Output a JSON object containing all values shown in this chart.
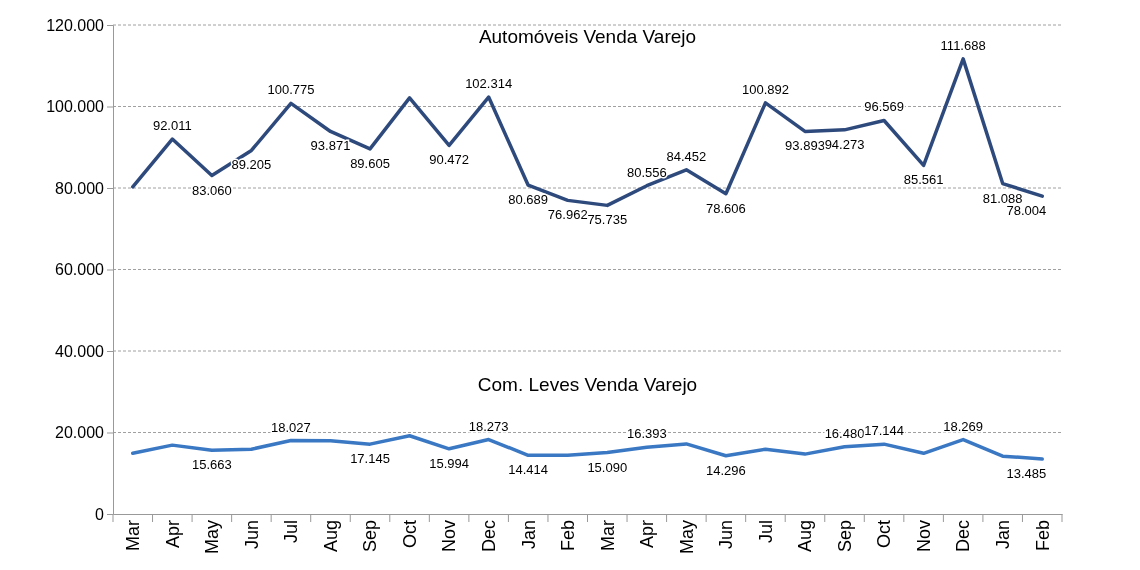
{
  "chart_data": {
    "type": "line",
    "categories": [
      "Mar",
      "Apr",
      "May",
      "Jun",
      "Jul",
      "Aug",
      "Sep",
      "Oct",
      "Nov",
      "Dec",
      "Jan",
      "Feb",
      "Mar",
      "Apr",
      "May",
      "Jun",
      "Jul",
      "Aug",
      "Sep",
      "Oct",
      "Nov",
      "Dec",
      "Jan",
      "Feb"
    ],
    "series": [
      {
        "name": "Automóveis Venda Varejo",
        "color": "#2e4a7d",
        "values": [
          80300,
          92011,
          83060,
          89205,
          100775,
          93871,
          89605,
          102100,
          90472,
          102314,
          80689,
          76962,
          75735,
          80556,
          84452,
          78606,
          100892,
          93893,
          94273,
          96569,
          85561,
          111688,
          81088,
          78004
        ],
        "value_labels": [
          null,
          "92.011",
          "83.060",
          "89.205",
          "100.775",
          "93.871",
          "89.605",
          null,
          "90.472",
          "102.314",
          "80.689",
          "76.962",
          "75.735",
          "80.556",
          "84.452",
          "78.606",
          "100.892",
          "93.893",
          "94.273",
          "96.569",
          "85.561",
          "111.688",
          "81.088",
          "78.004"
        ]
      },
      {
        "name": "Com. Leves Venda Varejo",
        "color": "#3a78c4",
        "values": [
          14900,
          16900,
          15663,
          15900,
          18027,
          18000,
          17145,
          19200,
          15994,
          18273,
          14414,
          14400,
          15090,
          16393,
          17200,
          14296,
          15900,
          14700,
          16480,
          17144,
          14900,
          18269,
          14200,
          13485
        ],
        "value_labels": [
          null,
          null,
          "15.663",
          null,
          "18.027",
          null,
          "17.145",
          null,
          "15.994",
          "18.273",
          "14.414",
          null,
          "15.090",
          "16.393",
          null,
          "14.296",
          null,
          null,
          "16.480",
          "17.144",
          null,
          "18.269",
          null,
          "13.485"
        ]
      }
    ],
    "ylim": [
      0,
      120000
    ],
    "yticks": [
      {
        "value": 0,
        "label": "0"
      },
      {
        "value": 20000,
        "label": "20.000"
      },
      {
        "value": 40000,
        "label": "40.000"
      },
      {
        "value": 60000,
        "label": "60.000"
      },
      {
        "value": 80000,
        "label": "80.000"
      },
      {
        "value": 100000,
        "label": "100.000"
      },
      {
        "value": 120000,
        "label": "120.000"
      }
    ],
    "grid": "y",
    "line_style": "solid",
    "marker": "none"
  }
}
